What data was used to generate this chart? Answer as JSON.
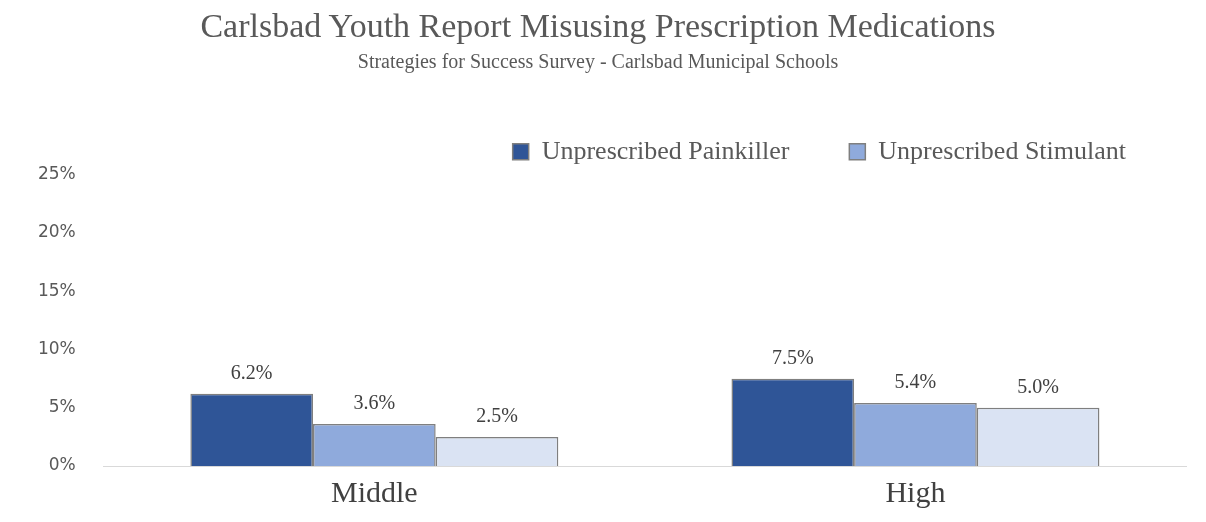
{
  "chart_data": {
    "type": "bar",
    "title": "Carlsbad Youth Report Misusing Prescription Medications",
    "subtitle": "Strategies for Success Survey - Carlsbad Municipal Schools",
    "categories": [
      "Middle",
      "High"
    ],
    "series": [
      {
        "name": "Unprescribed Painkiller",
        "color": "#2f5597",
        "values": [
          6.2,
          7.5
        ],
        "value_labels": [
          "6.2%",
          "7.5%"
        ]
      },
      {
        "name": "Unprescribed Stimulant",
        "color": "#8faadc",
        "values": [
          3.6,
          5.4
        ],
        "value_labels": [
          "3.6%",
          "5.4%"
        ]
      },
      {
        "color": "#dae3f3",
        "values": [
          2.5,
          5.0
        ],
        "value_labels": [
          "2.5%",
          "5.0%"
        ]
      }
    ],
    "ylim": [
      0,
      25
    ],
    "yticks": [
      {
        "value": 0,
        "label": "0%"
      },
      {
        "value": 5,
        "label": "5%"
      },
      {
        "value": 10,
        "label": "10%"
      },
      {
        "value": 15,
        "label": "15%"
      },
      {
        "value": 20,
        "label": "20%"
      },
      {
        "value": 25,
        "label": "25%"
      }
    ],
    "grid": false,
    "legend": "top"
  }
}
